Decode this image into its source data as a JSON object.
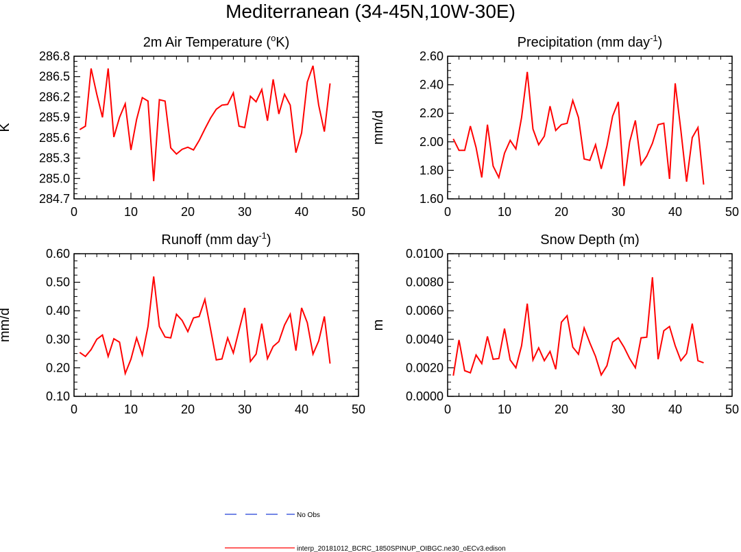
{
  "page": {
    "title": "Mediterranean (34-45N,10W-30E)"
  },
  "legend": [
    {
      "label": "No Obs",
      "color": "#1f3fd6",
      "dash": "dashed"
    },
    {
      "label": "interp_20181012_BCRC_1850SPINUP_OIBGC.ne30_oECv3.edison",
      "color": "#ff0000",
      "dash": "solid"
    }
  ],
  "chart_data": [
    {
      "type": "line",
      "title": "2m Air Temperature (",
      "title_sup": "o",
      "title_tail": "K)",
      "ylabel": "K",
      "xlim": [
        0,
        50
      ],
      "ylim": [
        284.7,
        286.8
      ],
      "xticks": [
        "0",
        "10",
        "20",
        "30",
        "40",
        "50"
      ],
      "yticks": [
        "284.7",
        "285.0",
        "285.3",
        "285.6",
        "285.9",
        "286.2",
        "286.5",
        "286.8"
      ],
      "series": [
        {
          "color": "#ff0000",
          "x": [
            1,
            2,
            3,
            4,
            5,
            6,
            7,
            8,
            9,
            10,
            11,
            12,
            13,
            14,
            15,
            16,
            17,
            18,
            19,
            20,
            21,
            22,
            23,
            24,
            25,
            26,
            27,
            28,
            29,
            30,
            31,
            32,
            33,
            34,
            35,
            36,
            37,
            38,
            39,
            40,
            41,
            42,
            43,
            44,
            45
          ],
          "values": [
            285.72,
            285.77,
            286.62,
            286.24,
            285.9,
            286.62,
            285.61,
            285.9,
            286.1,
            285.42,
            285.87,
            286.19,
            286.14,
            284.96,
            286.16,
            286.14,
            285.45,
            285.36,
            285.43,
            285.46,
            285.42,
            285.56,
            285.73,
            285.89,
            286.02,
            286.08,
            286.09,
            286.26,
            285.77,
            285.75,
            286.21,
            286.13,
            286.31,
            285.85,
            286.46,
            285.95,
            286.24,
            286.08,
            285.38,
            285.67,
            286.42,
            286.66,
            286.08,
            285.69,
            286.4
          ]
        }
      ]
    },
    {
      "type": "line",
      "title": "Precipitation (mm day",
      "title_sup": "-1",
      "title_tail": ")",
      "ylabel": "mm/d",
      "xlim": [
        0,
        50
      ],
      "ylim": [
        1.6,
        2.6
      ],
      "xticks": [
        "0",
        "10",
        "20",
        "30",
        "40",
        "50"
      ],
      "yticks": [
        "1.60",
        "1.80",
        "2.00",
        "2.20",
        "2.40",
        "2.60"
      ],
      "series": [
        {
          "color": "#ff0000",
          "x": [
            1,
            2,
            3,
            4,
            5,
            6,
            7,
            8,
            9,
            10,
            11,
            12,
            13,
            14,
            15,
            16,
            17,
            18,
            19,
            20,
            21,
            22,
            23,
            24,
            25,
            26,
            27,
            28,
            29,
            30,
            31,
            32,
            33,
            34,
            35,
            36,
            37,
            38,
            39,
            40,
            41,
            42,
            43,
            44,
            45
          ],
          "values": [
            2.02,
            1.94,
            1.94,
            2.11,
            1.96,
            1.75,
            2.12,
            1.83,
            1.75,
            1.92,
            2.01,
            1.95,
            2.17,
            2.49,
            2.09,
            1.98,
            2.04,
            2.25,
            2.08,
            2.12,
            2.13,
            2.29,
            2.17,
            1.88,
            1.87,
            1.98,
            1.81,
            1.97,
            2.18,
            2.28,
            1.69,
            2.0,
            2.15,
            1.84,
            1.9,
            1.99,
            2.12,
            2.13,
            1.74,
            2.41,
            2.08,
            1.72,
            2.03,
            2.1,
            1.7
          ]
        }
      ]
    },
    {
      "type": "line",
      "title": "Runoff (mm day",
      "title_sup": "-1",
      "title_tail": ")",
      "ylabel": "mm/d",
      "xlim": [
        0,
        50
      ],
      "ylim": [
        0.1,
        0.6
      ],
      "xticks": [
        "0",
        "10",
        "20",
        "30",
        "40",
        "50"
      ],
      "yticks": [
        "0.10",
        "0.20",
        "0.30",
        "0.40",
        "0.50",
        "0.60"
      ],
      "series": [
        {
          "color": "#ff0000",
          "x": [
            1,
            2,
            3,
            4,
            5,
            6,
            7,
            8,
            9,
            10,
            11,
            12,
            13,
            14,
            15,
            16,
            17,
            18,
            19,
            20,
            21,
            22,
            23,
            24,
            25,
            26,
            27,
            28,
            29,
            30,
            31,
            32,
            33,
            34,
            35,
            36,
            37,
            38,
            39,
            40,
            41,
            42,
            43,
            44,
            45
          ],
          "values": [
            0.254,
            0.24,
            0.264,
            0.3,
            0.315,
            0.24,
            0.302,
            0.29,
            0.18,
            0.23,
            0.305,
            0.245,
            0.345,
            0.52,
            0.345,
            0.308,
            0.305,
            0.388,
            0.366,
            0.327,
            0.375,
            0.38,
            0.44,
            0.335,
            0.228,
            0.231,
            0.305,
            0.252,
            0.332,
            0.41,
            0.222,
            0.248,
            0.355,
            0.232,
            0.275,
            0.292,
            0.35,
            0.388,
            0.26,
            0.41,
            0.358,
            0.248,
            0.294,
            0.38,
            0.215
          ]
        }
      ]
    },
    {
      "type": "line",
      "title": "Snow Depth (m)",
      "title_sup": "",
      "title_tail": "",
      "ylabel": "m",
      "xlim": [
        0,
        50
      ],
      "ylim": [
        0.0,
        0.01
      ],
      "xticks": [
        "0",
        "10",
        "20",
        "30",
        "40",
        "50"
      ],
      "yticks": [
        "0.0000",
        "0.0020",
        "0.0040",
        "0.0060",
        "0.0080",
        "0.0100"
      ],
      "series": [
        {
          "color": "#ff0000",
          "x": [
            1,
            2,
            3,
            4,
            5,
            6,
            7,
            8,
            9,
            10,
            11,
            12,
            13,
            14,
            15,
            16,
            17,
            18,
            19,
            20,
            21,
            22,
            23,
            24,
            25,
            26,
            27,
            28,
            29,
            30,
            31,
            32,
            33,
            34,
            35,
            36,
            37,
            38,
            39,
            40,
            41,
            42,
            43,
            44,
            45
          ],
          "values": [
            0.00145,
            0.00395,
            0.0018,
            0.00165,
            0.0029,
            0.0023,
            0.0042,
            0.0026,
            0.00265,
            0.00475,
            0.00255,
            0.002,
            0.00355,
            0.0065,
            0.00255,
            0.0034,
            0.0025,
            0.00315,
            0.0019,
            0.0052,
            0.00565,
            0.00345,
            0.00295,
            0.0048,
            0.00375,
            0.0028,
            0.0015,
            0.00215,
            0.0038,
            0.0041,
            0.00345,
            0.00265,
            0.002,
            0.0041,
            0.00415,
            0.00835,
            0.0026,
            0.0046,
            0.0049,
            0.00355,
            0.0025,
            0.003,
            0.0051,
            0.0025,
            0.00235
          ]
        }
      ]
    }
  ]
}
